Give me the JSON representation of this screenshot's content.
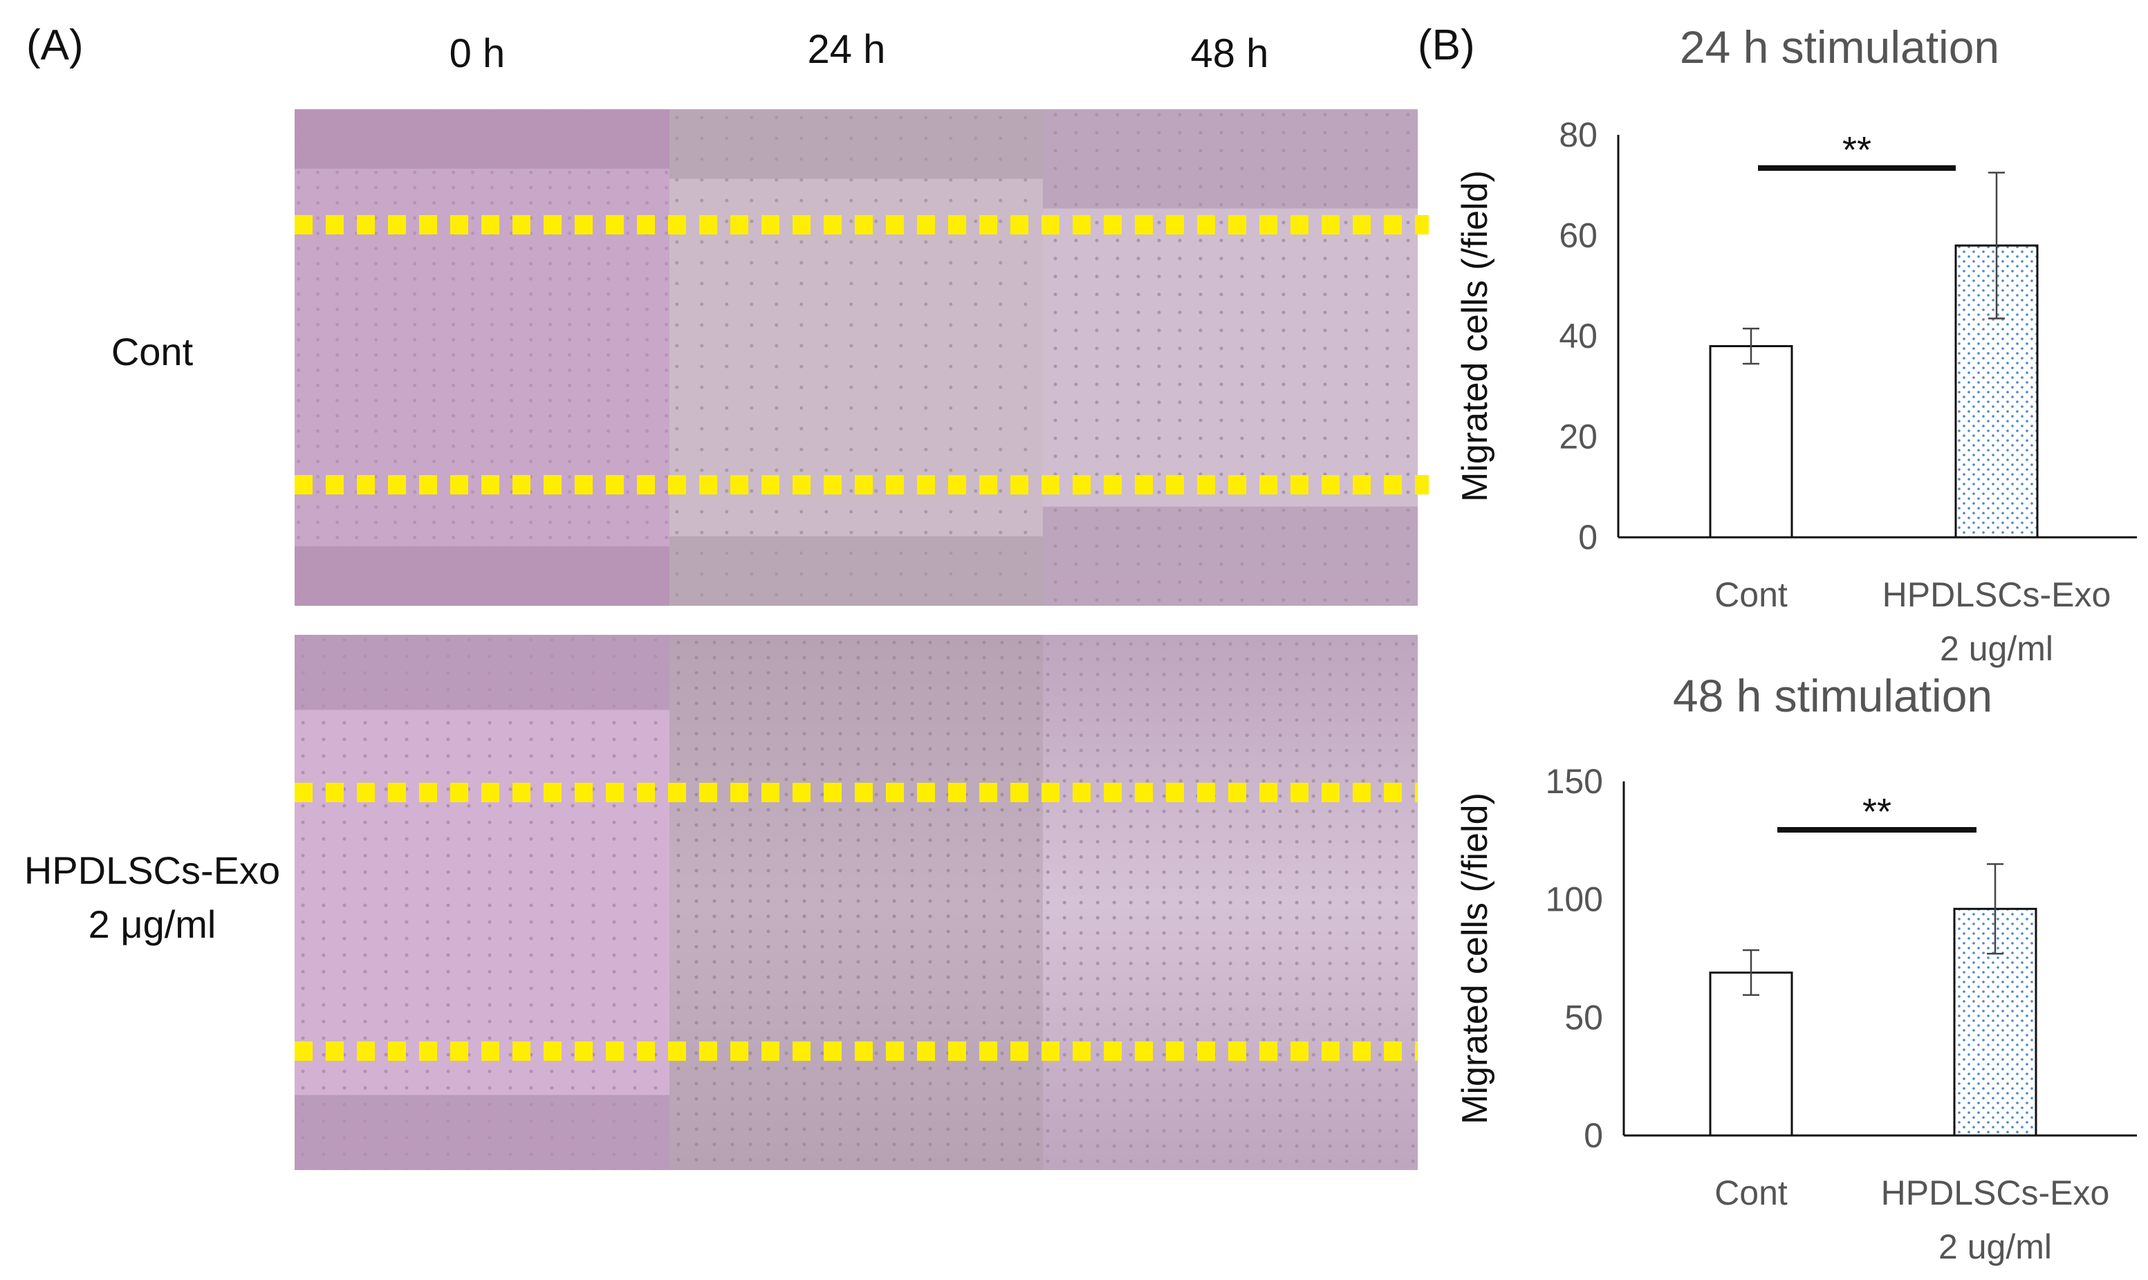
{
  "panel_labels": {
    "a": "(A)",
    "b": "(B)"
  },
  "time_labels": [
    "0 h",
    "24 h",
    "48 h"
  ],
  "row_labels": {
    "cont": "Cont",
    "exo_line1": "HPDLSCs-Exo",
    "exo_line2": "2 μg/ml"
  },
  "colors": {
    "tile_0h": "#c9a9c9",
    "tile_24h": "#c4b1c0",
    "tile_48h": "#cbb2cb",
    "wound_line": "#ffee00",
    "axis": "#111111",
    "bar_fill": "#ffffff",
    "dot_fill": "#4a86c8",
    "title_gray": "#555555"
  },
  "chart_data": [
    {
      "type": "bar",
      "title": "24 h stimulation",
      "categories": [
        "Cont",
        "HPDLSCs-Exo\n2 ug/ml"
      ],
      "category_lines": [
        [
          "Cont"
        ],
        [
          "HPDLSCs-Exo",
          "2 ug/ml"
        ]
      ],
      "values": [
        38,
        58
      ],
      "errors": [
        3.5,
        14.5
      ],
      "patterns": [
        "plain",
        "dotted"
      ],
      "ylabel": "Migrated cells (/field)",
      "ylim": [
        0,
        80
      ],
      "yticks": [
        0,
        20,
        40,
        60,
        80
      ],
      "significance": "**",
      "grid": false
    },
    {
      "type": "bar",
      "title": "48 h stimulation",
      "categories": [
        "Cont",
        "HPDLSCs-Exo\n2 ug/ml"
      ],
      "category_lines": [
        [
          "Cont"
        ],
        [
          "HPDLSCs-Exo",
          "2 ug/ml"
        ]
      ],
      "values": [
        69,
        96
      ],
      "errors": [
        9.5,
        19
      ],
      "patterns": [
        "plain",
        "dotted"
      ],
      "ylabel": "Migrated cells (/field)",
      "ylim": [
        0,
        150
      ],
      "yticks": [
        0,
        50,
        100,
        150
      ],
      "significance": "**",
      "grid": false
    }
  ]
}
